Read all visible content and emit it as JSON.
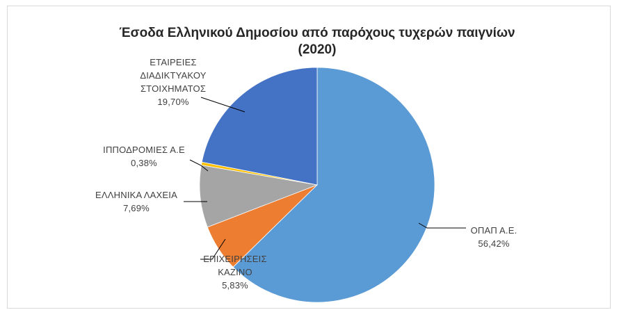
{
  "chart_data": {
    "type": "pie",
    "title": "Έσοδα Ελληνικού Δημοσίου από παρόχους τυχερών παιγνίων",
    "subtitle": "(2020)",
    "slices": [
      {
        "label": [
          "ΟΠΑΠ Α.Ε."
        ],
        "value": 56.42,
        "value_text": "56,42%",
        "color": "#5b9bd5"
      },
      {
        "label": [
          "ΕΠΙΧΕΙΡΗΣΕΙΣ",
          "ΚΑΖΙΝΟ"
        ],
        "value": 5.83,
        "value_text": "5,83%",
        "color": "#ed7d31"
      },
      {
        "label": [
          "ΕΛΛΗΝΙΚΑ ΛΑΧΕΙΑ"
        ],
        "value": 7.69,
        "value_text": "7,69%",
        "color": "#a5a5a5"
      },
      {
        "label": [
          "ΙΠΠΟΔΡΟΜΙΕΣ Α.Ε"
        ],
        "value": 0.38,
        "value_text": "0,38%",
        "color": "#ffc000"
      },
      {
        "label": [
          "ΕΤΑΙΡΕΙΕΣ",
          "ΔΙΑΔΙΚΤΥΑΚΟΥ",
          "ΣΤΟΙΧΗΜΑΤΟΣ"
        ],
        "value": 19.7,
        "value_text": "19,70%",
        "color": "#4472c4"
      }
    ],
    "start_angle": "12 o'clock",
    "direction": "clockwise",
    "legend": "none",
    "data_labels": "outside with leader lines"
  }
}
